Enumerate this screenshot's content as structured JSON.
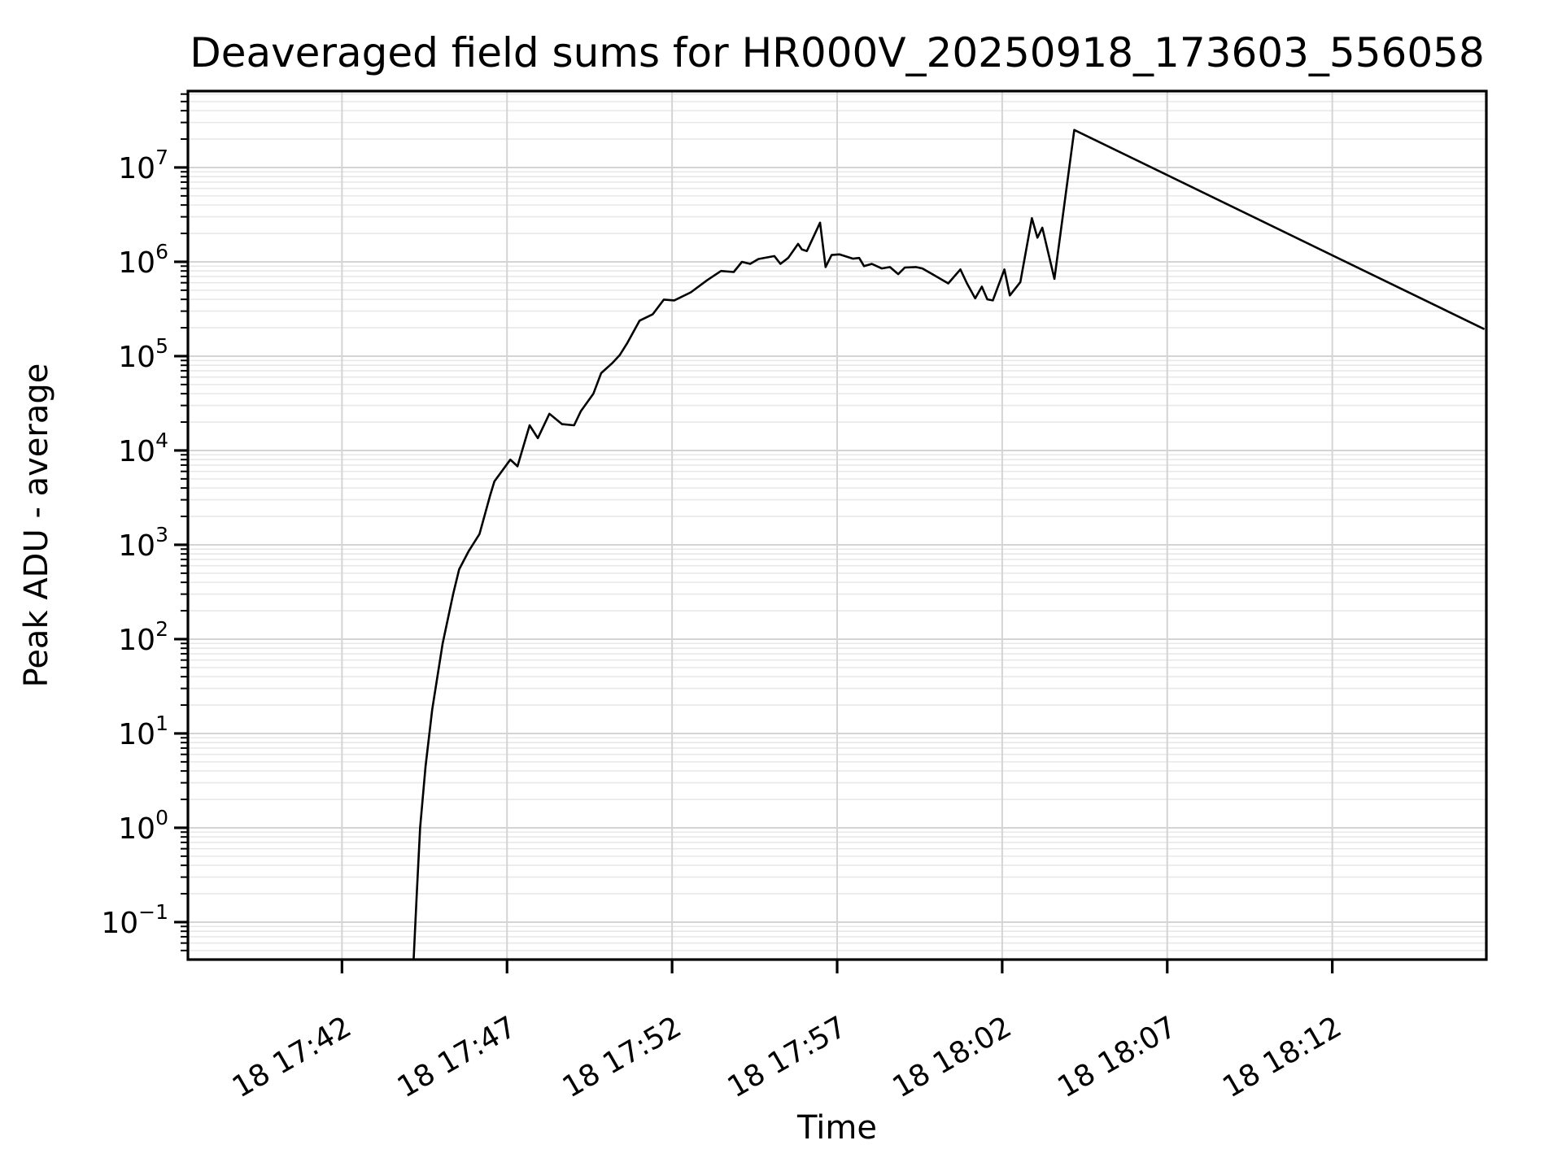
{
  "chart_data": {
    "type": "line",
    "title": "Deaveraged field sums for HR000V_20250918_173603_556058",
    "xlabel": "Time",
    "ylabel": "Peak ADU - average",
    "y_scale": "log",
    "y_log_range": [
      -1.397,
      7.81
    ],
    "x_range": [
      "17:37:20",
      "18:16:40"
    ],
    "grid": true,
    "legend": "none",
    "line_color": "#000000",
    "grid_major_color": "#d4d4d4",
    "grid_minor_color": "#e8e8e8",
    "x_ticks": [
      {
        "time": "17:42:00",
        "label": "18 17:42"
      },
      {
        "time": "17:47:00",
        "label": "18 17:47"
      },
      {
        "time": "17:52:00",
        "label": "18 17:52"
      },
      {
        "time": "17:57:00",
        "label": "18 17:57"
      },
      {
        "time": "18:02:00",
        "label": "18 18:02"
      },
      {
        "time": "18:07:00",
        "label": "18 18:07"
      },
      {
        "time": "18:12:00",
        "label": "18 18:12"
      }
    ],
    "y_ticks": [
      {
        "exp": -1,
        "label": "10^-1"
      },
      {
        "exp": 0,
        "label": "10^0"
      },
      {
        "exp": 1,
        "label": "10^1"
      },
      {
        "exp": 2,
        "label": "10^2"
      },
      {
        "exp": 3,
        "label": "10^3"
      },
      {
        "exp": 4,
        "label": "10^4"
      },
      {
        "exp": 5,
        "label": "10^5"
      },
      {
        "exp": 6,
        "label": "10^6"
      },
      {
        "exp": 7,
        "label": "10^7"
      }
    ],
    "points": [
      [
        "17:44:10",
        0.038
      ],
      [
        "17:44:16",
        0.2
      ],
      [
        "17:44:22",
        1.0
      ],
      [
        "17:44:32",
        4.5
      ],
      [
        "17:44:44",
        18
      ],
      [
        "17:45:03",
        90
      ],
      [
        "17:45:22",
        300
      ],
      [
        "17:45:33",
        550
      ],
      [
        "17:45:50",
        850
      ],
      [
        "17:46:10",
        1300
      ],
      [
        "17:46:29",
        3300
      ],
      [
        "17:46:37",
        4700
      ],
      [
        "17:47:06",
        8000
      ],
      [
        "17:47:19",
        6800
      ],
      [
        "17:47:41",
        18500
      ],
      [
        "17:47:56",
        13500
      ],
      [
        "17:48:17",
        24500
      ],
      [
        "17:48:40",
        19000
      ],
      [
        "17:49:02",
        18500
      ],
      [
        "17:49:14",
        26000
      ],
      [
        "17:49:37",
        40000
      ],
      [
        "17:49:51",
        66000
      ],
      [
        "17:50:11",
        84000
      ],
      [
        "17:50:25",
        103000
      ],
      [
        "17:50:39",
        139000
      ],
      [
        "17:51:01",
        238000
      ],
      [
        "17:51:25",
        278000
      ],
      [
        "17:51:45",
        398000
      ],
      [
        "17:52:04",
        390000
      ],
      [
        "17:52:34",
        475000
      ],
      [
        "17:53:04",
        640000
      ],
      [
        "17:53:29",
        800000
      ],
      [
        "17:53:52",
        780000
      ],
      [
        "17:54:07",
        1000000
      ],
      [
        "17:54:22",
        950000
      ],
      [
        "17:54:37",
        1070000
      ],
      [
        "17:55:06",
        1150000
      ],
      [
        "17:55:17",
        950000
      ],
      [
        "17:55:31",
        1100000
      ],
      [
        "17:55:49",
        1550000
      ],
      [
        "17:55:56",
        1350000
      ],
      [
        "17:56:05",
        1300000
      ],
      [
        "17:56:29",
        2600000
      ],
      [
        "17:56:39",
        880000
      ],
      [
        "17:56:50",
        1180000
      ],
      [
        "17:57:04",
        1200000
      ],
      [
        "17:57:29",
        1080000
      ],
      [
        "17:57:40",
        1100000
      ],
      [
        "17:57:49",
        900000
      ],
      [
        "17:58:03",
        950000
      ],
      [
        "17:58:21",
        850000
      ],
      [
        "17:58:36",
        880000
      ],
      [
        "17:58:51",
        740000
      ],
      [
        "17:59:03",
        870000
      ],
      [
        "17:59:23",
        880000
      ],
      [
        "17:59:35",
        850000
      ],
      [
        "18:00:22",
        590000
      ],
      [
        "18:00:44",
        830000
      ],
      [
        "18:00:56",
        590000
      ],
      [
        "18:01:11",
        410000
      ],
      [
        "18:01:23",
        545000
      ],
      [
        "18:01:33",
        400000
      ],
      [
        "18:01:43",
        390000
      ],
      [
        "18:02:04",
        830000
      ],
      [
        "18:02:14",
        440000
      ],
      [
        "18:02:33",
        610000
      ],
      [
        "18:02:54",
        2900000
      ],
      [
        "18:03:04",
        1800000
      ],
      [
        "18:03:13",
        2300000
      ],
      [
        "18:03:35",
        660000
      ],
      [
        "18:04:11",
        25000000
      ],
      [
        "18:16:35",
        195000
      ]
    ]
  }
}
